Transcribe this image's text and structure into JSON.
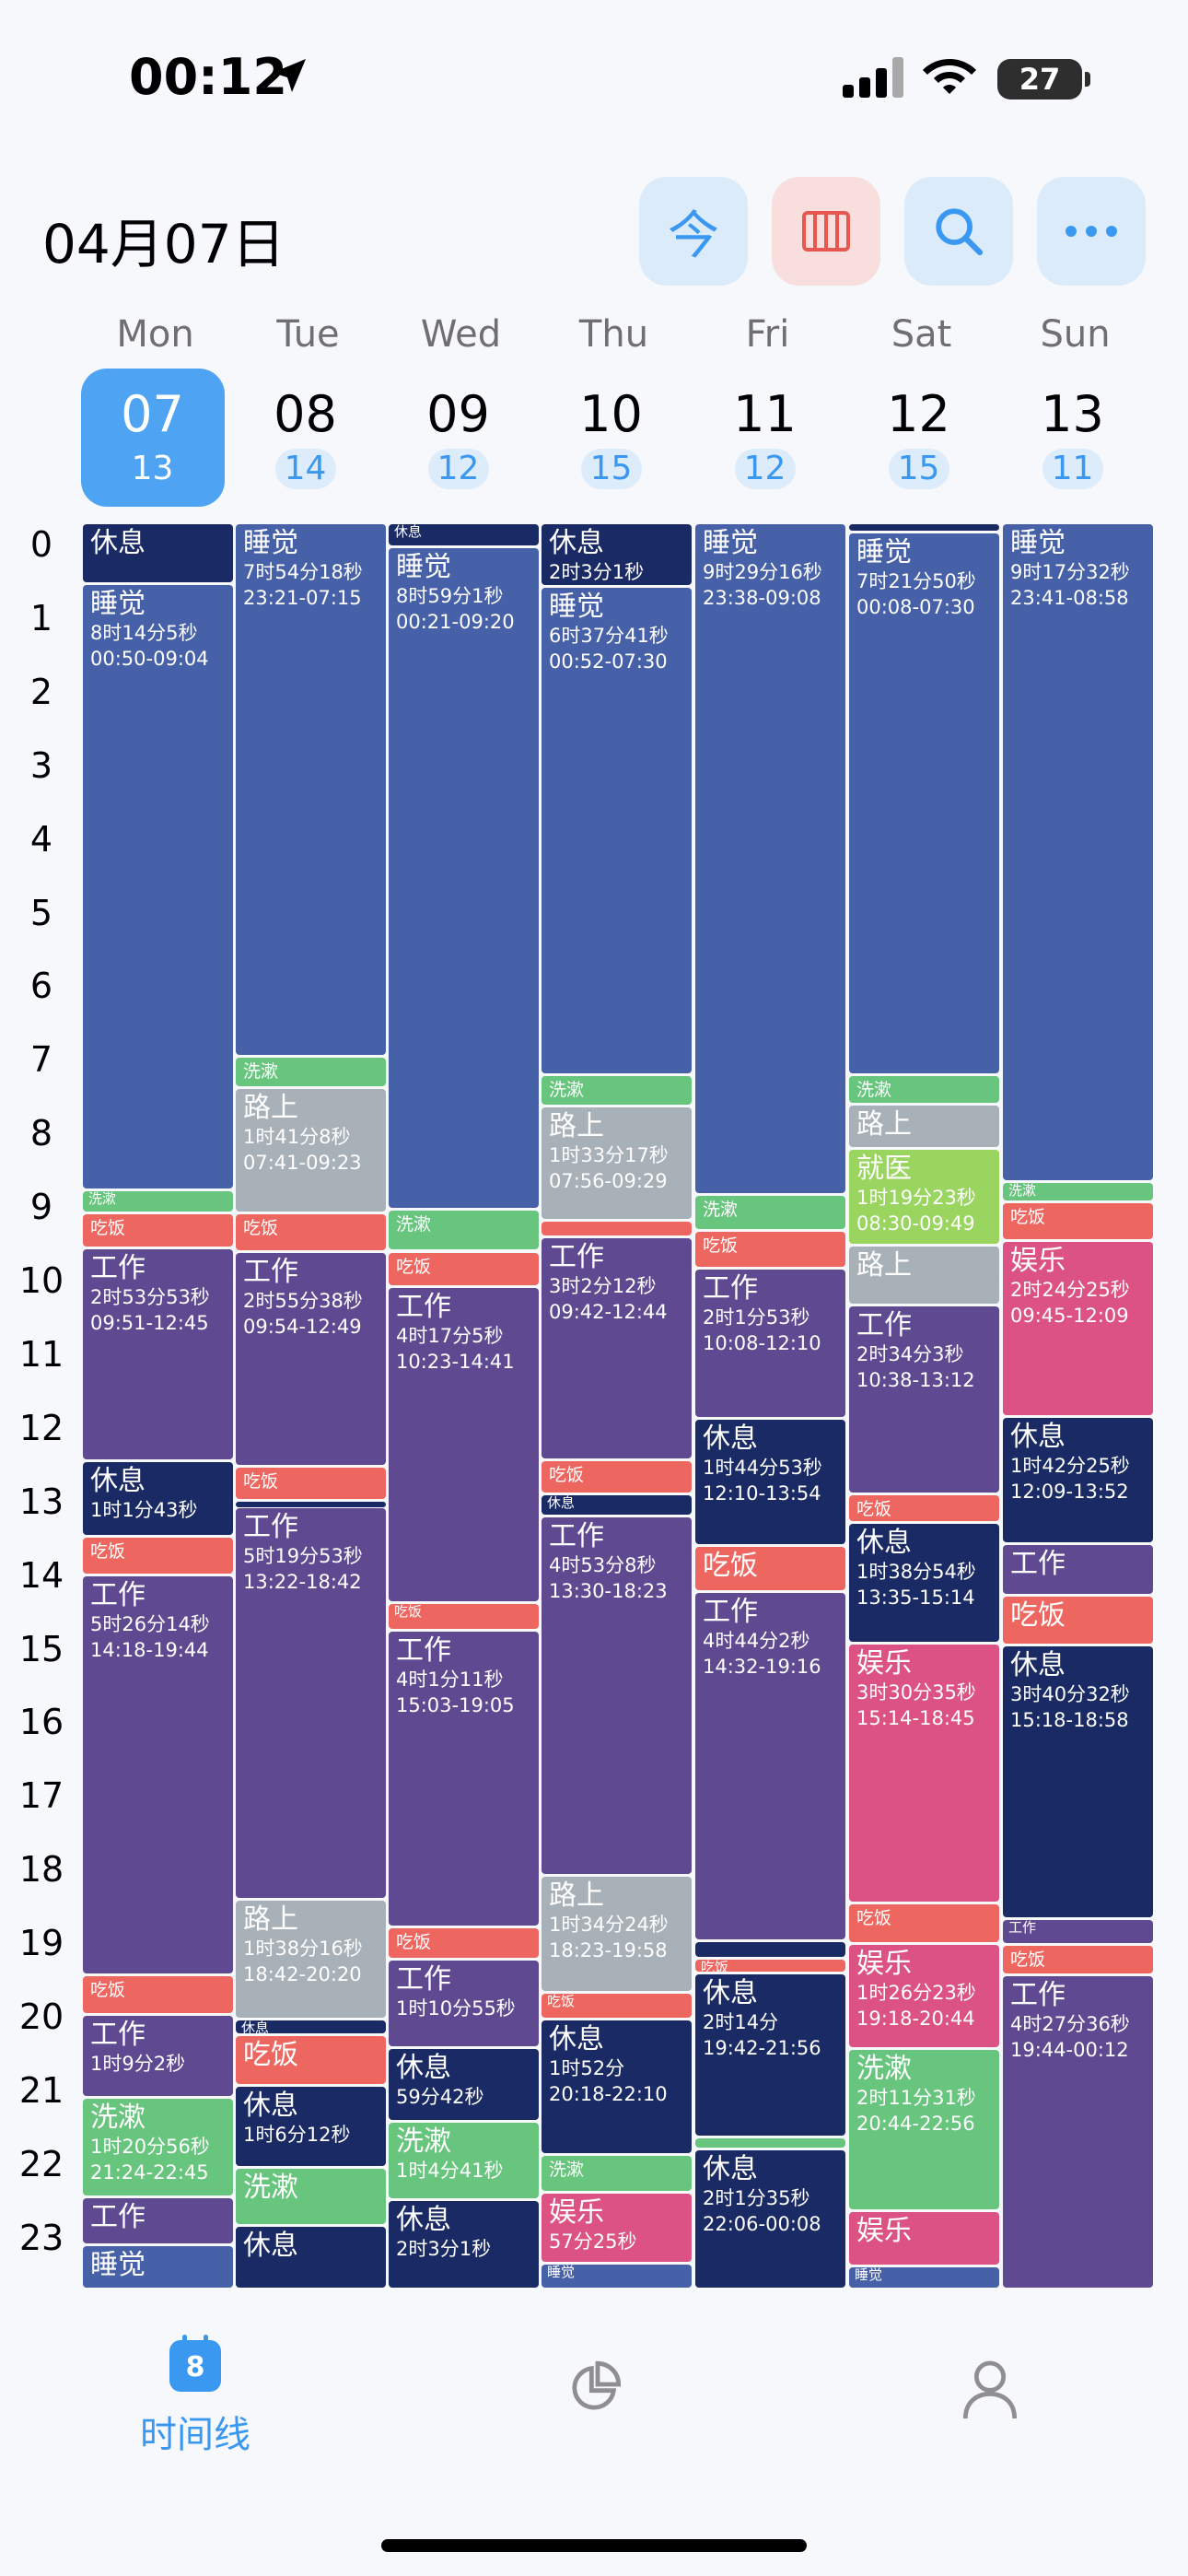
{
  "status_bar": {
    "time": "00:12",
    "battery": "27"
  },
  "header": {
    "date": "04月07日",
    "today_label": "今"
  },
  "days": [
    {
      "name": "Mon",
      "num": "07",
      "week": "13",
      "today": true
    },
    {
      "name": "Tue",
      "num": "08",
      "week": "14"
    },
    {
      "name": "Wed",
      "num": "09",
      "week": "12"
    },
    {
      "name": "Thu",
      "num": "10",
      "week": "15"
    },
    {
      "name": "Fri",
      "num": "11",
      "week": "12"
    },
    {
      "name": "Sat",
      "num": "12",
      "week": "15"
    },
    {
      "name": "Sun",
      "num": "13",
      "week": "11"
    }
  ],
  "hours": [
    "0",
    "1",
    "2",
    "3",
    "4",
    "5",
    "6",
    "7",
    "8",
    "9",
    "10",
    "11",
    "12",
    "13",
    "14",
    "15",
    "16",
    "17",
    "18",
    "19",
    "20",
    "21",
    "22",
    "23"
  ],
  "categories": {
    "sleep": "#4761a8",
    "rest": "#1a2a64",
    "wash": "#68c57e",
    "eat": "#ee6660",
    "work": "#5f4a92",
    "commute": "#a9b1b8",
    "fun": "#dc5383",
    "doctor": "#9ad55f"
  },
  "events": [
    {
      "day": 0,
      "s": 0,
      "e": 0.83,
      "cat": "rest",
      "t": "休息"
    },
    {
      "day": 0,
      "s": 0.83,
      "e": 9.07,
      "cat": "sleep",
      "t": "睡觉",
      "d": "8时14分5秒",
      "r": "00:50-09:04"
    },
    {
      "day": 0,
      "s": 9.07,
      "e": 9.38,
      "cat": "wash",
      "t": "洗漱"
    },
    {
      "day": 0,
      "s": 9.38,
      "e": 9.85,
      "cat": "eat",
      "t": "吃饭"
    },
    {
      "day": 0,
      "s": 9.85,
      "e": 12.75,
      "cat": "work",
      "t": "工作",
      "d": "2时53分53秒",
      "r": "09:51-12:45"
    },
    {
      "day": 0,
      "s": 12.75,
      "e": 13.77,
      "cat": "rest",
      "t": "休息",
      "d": "1时1分43秒"
    },
    {
      "day": 0,
      "s": 13.77,
      "e": 14.3,
      "cat": "eat",
      "t": "吃饭"
    },
    {
      "day": 0,
      "s": 14.3,
      "e": 19.73,
      "cat": "work",
      "t": "工作",
      "d": "5时26分14秒",
      "r": "14:18-19:44"
    },
    {
      "day": 0,
      "s": 19.73,
      "e": 20.27,
      "cat": "eat",
      "t": "吃饭"
    },
    {
      "day": 0,
      "s": 20.27,
      "e": 21.4,
      "cat": "work",
      "t": "工作",
      "d": "1时9分2秒"
    },
    {
      "day": 0,
      "s": 21.4,
      "e": 22.75,
      "cat": "wash",
      "t": "洗漱",
      "d": "1时20分56秒",
      "r": "21:24-22:45"
    },
    {
      "day": 0,
      "s": 22.75,
      "e": 23.4,
      "cat": "work",
      "t": "工作"
    },
    {
      "day": 0,
      "s": 23.4,
      "e": 24,
      "cat": "sleep",
      "t": "睡觉"
    },
    {
      "day": 1,
      "s": 0,
      "e": 7.25,
      "cat": "sleep",
      "t": "睡觉",
      "d": "7时54分18秒",
      "r": "23:21-07:15"
    },
    {
      "day": 1,
      "s": 7.25,
      "e": 7.68,
      "cat": "wash",
      "t": "洗漱"
    },
    {
      "day": 1,
      "s": 7.68,
      "e": 9.38,
      "cat": "commute",
      "t": "路上",
      "d": "1时41分8秒",
      "r": "07:41-09:23"
    },
    {
      "day": 1,
      "s": 9.38,
      "e": 9.9,
      "cat": "eat",
      "t": "吃饭"
    },
    {
      "day": 1,
      "s": 9.9,
      "e": 12.82,
      "cat": "work",
      "t": "工作",
      "d": "2时55分38秒",
      "r": "09:54-12:49"
    },
    {
      "day": 1,
      "s": 12.82,
      "e": 13.28,
      "cat": "eat",
      "t": "吃饭"
    },
    {
      "day": 1,
      "s": 13.28,
      "e": 13.37,
      "cat": "rest",
      "t": ""
    },
    {
      "day": 1,
      "s": 13.37,
      "e": 18.7,
      "cat": "work",
      "t": "工作",
      "d": "5时19分53秒",
      "r": "13:22-18:42"
    },
    {
      "day": 1,
      "s": 18.7,
      "e": 20.33,
      "cat": "commute",
      "t": "路上",
      "d": "1时38分16秒",
      "r": "18:42-20:20"
    },
    {
      "day": 1,
      "s": 20.33,
      "e": 20.55,
      "cat": "rest",
      "t": "休息"
    },
    {
      "day": 1,
      "s": 20.55,
      "e": 21.23,
      "cat": "eat",
      "t": "吃饭"
    },
    {
      "day": 1,
      "s": 21.23,
      "e": 22.35,
      "cat": "rest",
      "t": "休息",
      "d": "1时6分12秒"
    },
    {
      "day": 1,
      "s": 22.35,
      "e": 23.13,
      "cat": "wash",
      "t": "洗漱"
    },
    {
      "day": 1,
      "s": 23.13,
      "e": 24,
      "cat": "rest",
      "t": "休息"
    },
    {
      "day": 2,
      "s": 0,
      "e": 0.33,
      "cat": "rest",
      "t": "休息"
    },
    {
      "day": 2,
      "s": 0.33,
      "e": 9.33,
      "cat": "sleep",
      "t": "睡觉",
      "d": "8时59分1秒",
      "r": "00:21-09:20"
    },
    {
      "day": 2,
      "s": 9.33,
      "e": 9.9,
      "cat": "wash",
      "t": "洗漱"
    },
    {
      "day": 2,
      "s": 9.9,
      "e": 10.38,
      "cat": "eat",
      "t": "吃饭"
    },
    {
      "day": 2,
      "s": 10.38,
      "e": 14.68,
      "cat": "work",
      "t": "工作",
      "d": "4时17分5秒",
      "r": "10:23-14:41"
    },
    {
      "day": 2,
      "s": 14.68,
      "e": 15.05,
      "cat": "eat",
      "t": "吃饭"
    },
    {
      "day": 2,
      "s": 15.05,
      "e": 19.08,
      "cat": "work",
      "t": "工作",
      "d": "4时1分11秒",
      "r": "15:03-19:05"
    },
    {
      "day": 2,
      "s": 19.08,
      "e": 19.52,
      "cat": "eat",
      "t": "吃饭"
    },
    {
      "day": 2,
      "s": 19.52,
      "e": 20.72,
      "cat": "work",
      "t": "工作",
      "d": "1时10分55秒"
    },
    {
      "day": 2,
      "s": 20.72,
      "e": 21.72,
      "cat": "rest",
      "t": "休息",
      "d": "59分42秒"
    },
    {
      "day": 2,
      "s": 21.72,
      "e": 22.78,
      "cat": "wash",
      "t": "洗漱",
      "d": "1时4分41秒"
    },
    {
      "day": 2,
      "s": 22.78,
      "e": 24,
      "cat": "rest",
      "t": "休息",
      "d": "2时3分1秒"
    },
    {
      "day": 3,
      "s": 0,
      "e": 0.87,
      "cat": "rest",
      "t": "休息",
      "d": "2时3分1秒"
    },
    {
      "day": 3,
      "s": 0.87,
      "e": 7.5,
      "cat": "sleep",
      "t": "睡觉",
      "d": "6时37分41秒",
      "r": "00:52-07:30"
    },
    {
      "day": 3,
      "s": 7.5,
      "e": 7.93,
      "cat": "wash",
      "t": "洗漱"
    },
    {
      "day": 3,
      "s": 7.93,
      "e": 9.48,
      "cat": "commute",
      "t": "路上",
      "d": "1时33分17秒",
      "r": "07:56-09:29"
    },
    {
      "day": 3,
      "s": 9.48,
      "e": 9.7,
      "cat": "eat",
      "t": ""
    },
    {
      "day": 3,
      "s": 9.7,
      "e": 12.73,
      "cat": "work",
      "t": "工作",
      "d": "3时2分12秒",
      "r": "09:42-12:44"
    },
    {
      "day": 3,
      "s": 12.73,
      "e": 13.2,
      "cat": "eat",
      "t": "吃饭"
    },
    {
      "day": 3,
      "s": 13.2,
      "e": 13.5,
      "cat": "rest",
      "t": "休息"
    },
    {
      "day": 3,
      "s": 13.5,
      "e": 18.38,
      "cat": "work",
      "t": "工作",
      "d": "4时53分8秒",
      "r": "13:30-18:23"
    },
    {
      "day": 3,
      "s": 18.38,
      "e": 19.97,
      "cat": "commute",
      "t": "路上",
      "d": "1时34分24秒",
      "r": "18:23-19:58"
    },
    {
      "day": 3,
      "s": 19.97,
      "e": 20.33,
      "cat": "eat",
      "t": "吃饭"
    },
    {
      "day": 3,
      "s": 20.33,
      "e": 22.17,
      "cat": "rest",
      "t": "休息",
      "d": "1时52分",
      "r": "20:18-22:10"
    },
    {
      "day": 3,
      "s": 22.17,
      "e": 22.68,
      "cat": "wash",
      "t": "洗漱"
    },
    {
      "day": 3,
      "s": 22.68,
      "e": 23.65,
      "cat": "fun",
      "t": "娱乐",
      "d": "57分25秒"
    },
    {
      "day": 3,
      "s": 23.65,
      "e": 24,
      "cat": "sleep",
      "t": "睡觉"
    },
    {
      "day": 4,
      "s": 0,
      "e": 9.13,
      "cat": "sleep",
      "t": "睡觉",
      "d": "9时29分16秒",
      "r": "23:38-09:08"
    },
    {
      "day": 4,
      "s": 9.13,
      "e": 9.62,
      "cat": "wash",
      "t": "洗漱"
    },
    {
      "day": 4,
      "s": 9.62,
      "e": 10.13,
      "cat": "eat",
      "t": "吃饭"
    },
    {
      "day": 4,
      "s": 10.13,
      "e": 12.17,
      "cat": "work",
      "t": "工作",
      "d": "2时1分53秒",
      "r": "10:08-12:10"
    },
    {
      "day": 4,
      "s": 12.17,
      "e": 13.9,
      "cat": "rest",
      "t": "休息",
      "d": "1时44分53秒",
      "r": "12:10-13:54"
    },
    {
      "day": 4,
      "s": 13.9,
      "e": 14.53,
      "cat": "eat",
      "t": "吃饭"
    },
    {
      "day": 4,
      "s": 14.53,
      "e": 19.27,
      "cat": "work",
      "t": "工作",
      "d": "4时44分2秒",
      "r": "14:32-19:16"
    },
    {
      "day": 4,
      "s": 19.27,
      "e": 19.5,
      "cat": "rest",
      "t": ""
    },
    {
      "day": 4,
      "s": 19.5,
      "e": 19.7,
      "cat": "eat",
      "t": "吃饭"
    },
    {
      "day": 4,
      "s": 19.7,
      "e": 21.93,
      "cat": "rest",
      "t": "休息",
      "d": "2时14分",
      "r": "19:42-21:56"
    },
    {
      "day": 4,
      "s": 21.93,
      "e": 22.1,
      "cat": "wash",
      "t": ""
    },
    {
      "day": 4,
      "s": 22.1,
      "e": 24,
      "cat": "rest",
      "t": "休息",
      "d": "2时1分35秒",
      "r": "22:06-00:08"
    },
    {
      "day": 5,
      "s": 0,
      "e": 0.13,
      "cat": "rest",
      "t": ""
    },
    {
      "day": 5,
      "s": 0.13,
      "e": 7.5,
      "cat": "sleep",
      "t": "睡觉",
      "d": "7时21分50秒",
      "r": "00:08-07:30"
    },
    {
      "day": 5,
      "s": 7.5,
      "e": 7.9,
      "cat": "wash",
      "t": "洗漱"
    },
    {
      "day": 5,
      "s": 7.9,
      "e": 8.5,
      "cat": "commute",
      "t": "路上"
    },
    {
      "day": 5,
      "s": 8.5,
      "e": 9.82,
      "cat": "doctor",
      "t": "就医",
      "d": "1时19分23秒",
      "r": "08:30-09:49"
    },
    {
      "day": 5,
      "s": 9.82,
      "e": 10.63,
      "cat": "commute",
      "t": "路上"
    },
    {
      "day": 5,
      "s": 10.63,
      "e": 13.2,
      "cat": "work",
      "t": "工作",
      "d": "2时34分3秒",
      "r": "10:38-13:12"
    },
    {
      "day": 5,
      "s": 13.2,
      "e": 13.58,
      "cat": "eat",
      "t": "吃饭"
    },
    {
      "day": 5,
      "s": 13.58,
      "e": 15.23,
      "cat": "rest",
      "t": "休息",
      "d": "1时38分54秒",
      "r": "13:35-15:14"
    },
    {
      "day": 5,
      "s": 15.23,
      "e": 18.75,
      "cat": "fun",
      "t": "娱乐",
      "d": "3时30分35秒",
      "r": "15:14-18:45"
    },
    {
      "day": 5,
      "s": 18.75,
      "e": 19.3,
      "cat": "eat",
      "t": "吃饭"
    },
    {
      "day": 5,
      "s": 19.3,
      "e": 20.73,
      "cat": "fun",
      "t": "娱乐",
      "d": "1时26分23秒",
      "r": "19:18-20:44"
    },
    {
      "day": 5,
      "s": 20.73,
      "e": 22.93,
      "cat": "wash",
      "t": "洗漱",
      "d": "2时11分31秒",
      "r": "20:44-22:56"
    },
    {
      "day": 5,
      "s": 22.93,
      "e": 23.68,
      "cat": "fun",
      "t": "娱乐"
    },
    {
      "day": 5,
      "s": 23.68,
      "e": 24,
      "cat": "sleep",
      "t": "睡觉"
    },
    {
      "day": 6,
      "s": 0,
      "e": 8.95,
      "cat": "sleep",
      "t": "睡觉",
      "d": "9时17分32秒",
      "r": "23:41-08:58"
    },
    {
      "day": 6,
      "s": 8.95,
      "e": 9.23,
      "cat": "wash",
      "t": "洗漱"
    },
    {
      "day": 6,
      "s": 9.23,
      "e": 9.75,
      "cat": "eat",
      "t": "吃饭"
    },
    {
      "day": 6,
      "s": 9.75,
      "e": 12.15,
      "cat": "fun",
      "t": "娱乐",
      "d": "2时24分25秒",
      "r": "09:45-12:09"
    },
    {
      "day": 6,
      "s": 12.15,
      "e": 13.87,
      "cat": "rest",
      "t": "休息",
      "d": "1时42分25秒",
      "r": "12:09-13:52"
    },
    {
      "day": 6,
      "s": 13.87,
      "e": 14.58,
      "cat": "work",
      "t": "工作"
    },
    {
      "day": 6,
      "s": 14.58,
      "e": 15.25,
      "cat": "eat",
      "t": "吃饭"
    },
    {
      "day": 6,
      "s": 15.25,
      "e": 18.97,
      "cat": "rest",
      "t": "休息",
      "d": "3时40分32秒",
      "r": "15:18-18:58"
    },
    {
      "day": 6,
      "s": 18.97,
      "e": 19.32,
      "cat": "work",
      "t": "工作"
    },
    {
      "day": 6,
      "s": 19.32,
      "e": 19.73,
      "cat": "eat",
      "t": "吃饭"
    },
    {
      "day": 6,
      "s": 19.73,
      "e": 24,
      "cat": "work",
      "t": "工作",
      "d": "4时27分36秒",
      "r": "19:44-00:12"
    }
  ],
  "tabbar": {
    "timeline_label": "时间线",
    "calendar_icon_day": "8"
  }
}
